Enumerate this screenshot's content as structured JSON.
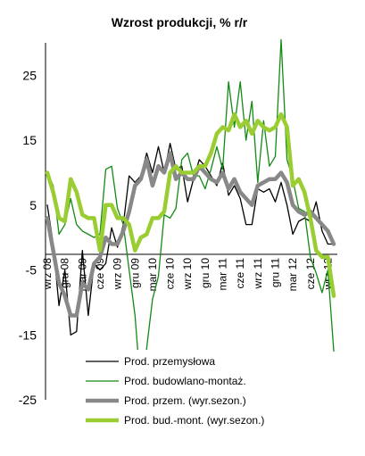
{
  "chart_data": {
    "type": "line",
    "title": "Wzrost produkcji, % r/r",
    "xlabel": "",
    "ylabel": "",
    "ylim": [
      -25,
      30
    ],
    "yticks": [
      25,
      15,
      5,
      -5,
      -15,
      -25
    ],
    "grid": false,
    "legend_position": "bottom-right",
    "x_tick_labels": [
      "wrz 08",
      "gru 08",
      "mar 09",
      "cze 09",
      "wrz 09",
      "gru 09",
      "mar 10",
      "cze 10",
      "wrz 10",
      "gru 10",
      "mar 11",
      "cze 11",
      "wrz 11",
      "gru 11",
      "mar 12",
      "cze 12",
      "wrz 12"
    ],
    "x": [
      "2008-09",
      "2008-10",
      "2008-11",
      "2008-12",
      "2009-01",
      "2009-02",
      "2009-03",
      "2009-04",
      "2009-05",
      "2009-06",
      "2009-07",
      "2009-08",
      "2009-09",
      "2009-10",
      "2009-11",
      "2009-12",
      "2010-01",
      "2010-02",
      "2010-03",
      "2010-04",
      "2010-05",
      "2010-06",
      "2010-07",
      "2010-08",
      "2010-09",
      "2010-10",
      "2010-11",
      "2010-12",
      "2011-01",
      "2011-02",
      "2011-03",
      "2011-04",
      "2011-05",
      "2011-06",
      "2011-07",
      "2011-08",
      "2011-09",
      "2011-10",
      "2011-11",
      "2011-12",
      "2012-01",
      "2012-02",
      "2012-03",
      "2012-04",
      "2012-05",
      "2012-06",
      "2012-07",
      "2012-08",
      "2012-09",
      "2012-10"
    ],
    "series": [
      {
        "name": "Prod. przemysłowa",
        "color": "#000000",
        "width": 1.3,
        "values": [
          5,
          -1,
          -10.5,
          -5,
          -15,
          -14.5,
          -2,
          -12,
          -4,
          -5,
          -4,
          1.5,
          -1.5,
          2,
          9.5,
          8.5,
          9.5,
          13,
          10,
          14,
          10,
          14.5,
          10.5,
          11,
          5.5,
          9,
          12,
          11,
          9.5,
          8,
          11.5,
          6.5,
          8,
          6,
          2,
          2,
          7.5,
          7,
          7.5,
          5.5,
          8.5,
          5,
          0.5,
          2.5,
          3,
          2.5,
          5.5,
          1,
          -1,
          -1
        ]
      },
      {
        "name": "Prod. budowlano-montaż.",
        "color": "#138a13",
        "width": 1.3,
        "values": [
          10,
          8,
          0.5,
          2,
          6,
          2,
          1,
          0.5,
          0,
          0.5,
          10.5,
          11,
          4.5,
          2,
          -5,
          -12,
          -23.5,
          -17,
          -9.5,
          -6,
          3.5,
          3,
          4.5,
          12,
          13,
          9.5,
          9.5,
          7.5,
          10.5,
          14,
          10.5,
          24,
          17,
          24,
          15,
          21,
          8.5,
          18,
          11,
          12.5,
          30.5,
          12,
          9,
          4.5,
          4,
          -3,
          -5.5,
          -8.5,
          -5,
          -17.5
        ]
      },
      {
        "name": "Prod. przem. (wyr.sezon.)",
        "color": "#888888",
        "width": 4.5,
        "values": [
          3,
          -2,
          -7,
          -9,
          -12,
          -12,
          -7,
          -8,
          -4,
          -3,
          0,
          -1,
          -1,
          1,
          4,
          8,
          9,
          12,
          8,
          11,
          10,
          13,
          9,
          10,
          9,
          9,
          11,
          10,
          9,
          8.5,
          10,
          7.5,
          9,
          7,
          6,
          5,
          8,
          8.5,
          9,
          9,
          10,
          8.5,
          5,
          4,
          3.5,
          4,
          3,
          2,
          1,
          -1
        ]
      },
      {
        "name": "Prod. bud.-mont. (wyr.sezon.)",
        "color": "#9acd32",
        "width": 4.5,
        "values": [
          10,
          7,
          3,
          2.5,
          9,
          7,
          3.5,
          3,
          3,
          -2,
          5,
          5,
          3,
          3,
          2,
          -2,
          0,
          0.5,
          3,
          3,
          4,
          10,
          11,
          10,
          10,
          10,
          11,
          11,
          13,
          16,
          17,
          16.5,
          19,
          17,
          18,
          16,
          18,
          17,
          16.5,
          17,
          19,
          17,
          8,
          9,
          7,
          3,
          -2,
          -3,
          -3,
          -9
        ]
      }
    ]
  }
}
